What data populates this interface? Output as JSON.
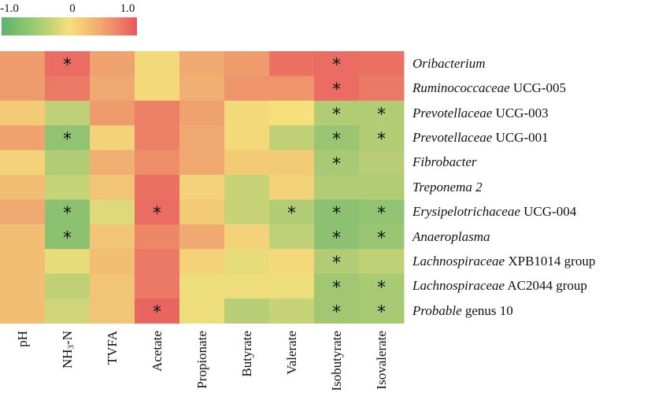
{
  "chart_data": {
    "type": "heatmap",
    "title": "",
    "colorbar": {
      "min": -1.0,
      "max": 1.0,
      "ticks": [
        "-1.0",
        "0",
        "1.0"
      ],
      "colors": {
        "low": "#5db36c",
        "mid": "#f5e07c",
        "high": "#e8575d"
      },
      "placement": "top-left"
    },
    "columns": [
      {
        "label": "pH"
      },
      {
        "label": "NH3-N",
        "base": "NH",
        "sub": "3",
        "rest": "-N"
      },
      {
        "label": "TVFA"
      },
      {
        "label": "Acetate"
      },
      {
        "label": "Propionate"
      },
      {
        "label": "Butyrate"
      },
      {
        "label": "Valerate"
      },
      {
        "label": "Isobutyrate"
      },
      {
        "label": "Isovalerate"
      }
    ],
    "rows": [
      {
        "italic": "Oribacterium",
        "plain": ""
      },
      {
        "italic": "Ruminococcaceae",
        "plain": " UCG-005"
      },
      {
        "italic": "Prevotellaceae",
        "plain": " UCG-003"
      },
      {
        "italic": "Prevotellaceae",
        "plain": " UCG-001"
      },
      {
        "italic": "Fibrobacter",
        "plain": ""
      },
      {
        "italic": "Treponema 2",
        "plain": ""
      },
      {
        "italic": "Erysipelotrichaceae",
        "plain": " UCG-004"
      },
      {
        "italic": "Anaeroplasma",
        "plain": ""
      },
      {
        "italic": "Lachnospiraceae",
        "plain": " XPB1014 group"
      },
      {
        "italic": "Lachnospiraceae",
        "plain": " AC2044 group"
      },
      {
        "italic": "Probable",
        "plain": " genus 10"
      }
    ],
    "values": [
      [
        0.5,
        0.85,
        0.45,
        0.05,
        0.4,
        0.5,
        0.8,
        0.85,
        0.8
      ],
      [
        0.5,
        0.75,
        0.4,
        0.05,
        0.35,
        0.55,
        0.55,
        0.85,
        0.75
      ],
      [
        0.15,
        -0.35,
        0.5,
        0.7,
        0.45,
        0.05,
        0.0,
        -0.45,
        -0.45
      ],
      [
        0.45,
        -0.65,
        0.1,
        0.7,
        0.4,
        0.05,
        -0.35,
        -0.6,
        -0.45
      ],
      [
        0.1,
        -0.45,
        0.35,
        0.6,
        0.4,
        0.15,
        0.15,
        -0.5,
        -0.4
      ],
      [
        0.25,
        -0.3,
        0.2,
        0.8,
        0.1,
        -0.3,
        0.1,
        -0.45,
        -0.45
      ],
      [
        0.4,
        -0.7,
        -0.15,
        0.85,
        0.15,
        -0.3,
        -0.45,
        -0.7,
        -0.65
      ],
      [
        0.25,
        -0.7,
        0.2,
        0.65,
        0.4,
        0.1,
        -0.35,
        -0.7,
        -0.6
      ],
      [
        0.25,
        -0.1,
        0.25,
        0.75,
        0.1,
        -0.1,
        0.05,
        -0.45,
        -0.35
      ],
      [
        0.25,
        -0.35,
        0.2,
        0.75,
        -0.05,
        -0.05,
        -0.05,
        -0.55,
        -0.5
      ],
      [
        0.25,
        -0.25,
        0.2,
        0.9,
        -0.05,
        -0.4,
        -0.3,
        -0.55,
        -0.5
      ]
    ],
    "significance": [
      [
        false,
        true,
        false,
        false,
        false,
        false,
        false,
        true,
        false
      ],
      [
        false,
        false,
        false,
        false,
        false,
        false,
        false,
        true,
        false
      ],
      [
        false,
        false,
        false,
        false,
        false,
        false,
        false,
        true,
        true
      ],
      [
        false,
        true,
        false,
        false,
        false,
        false,
        false,
        true,
        true
      ],
      [
        false,
        false,
        false,
        false,
        false,
        false,
        false,
        true,
        false
      ],
      [
        false,
        false,
        false,
        false,
        false,
        false,
        false,
        false,
        false
      ],
      [
        false,
        true,
        false,
        true,
        false,
        false,
        true,
        true,
        true
      ],
      [
        false,
        true,
        false,
        false,
        false,
        false,
        false,
        true,
        true
      ],
      [
        false,
        false,
        false,
        false,
        false,
        false,
        false,
        true,
        false
      ],
      [
        false,
        false,
        false,
        false,
        false,
        false,
        false,
        true,
        true
      ],
      [
        false,
        false,
        false,
        true,
        false,
        false,
        false,
        true,
        true
      ]
    ],
    "significance_marker": "*"
  }
}
